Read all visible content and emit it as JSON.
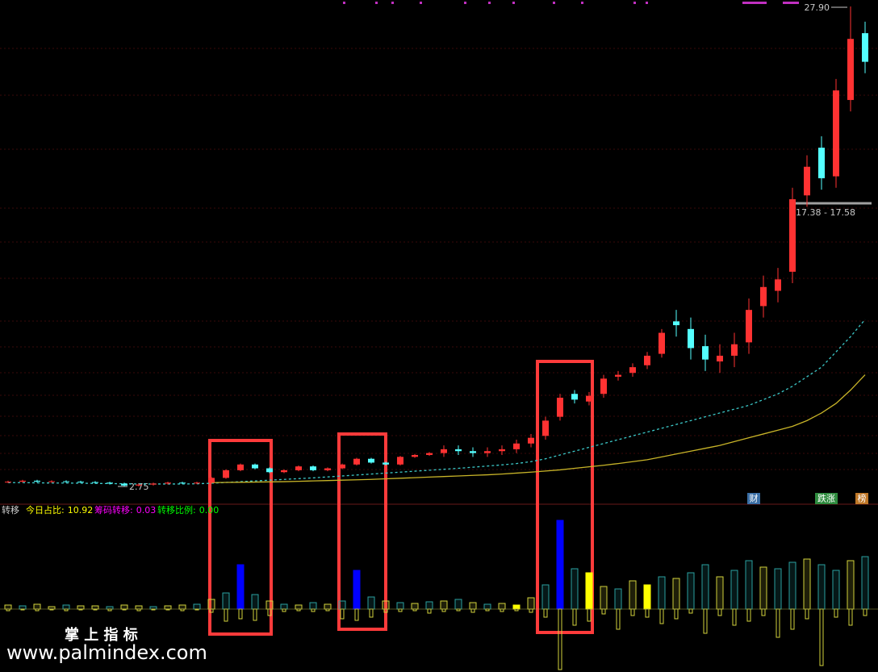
{
  "chart_data": [
    {
      "type": "candlestick",
      "open": [
        2.98,
        3.0,
        3.05,
        3.0,
        3.02,
        3.0,
        2.98,
        2.95,
        2.9,
        2.8,
        2.85,
        2.9,
        2.95,
        2.92,
        2.95,
        3.2,
        3.6,
        3.9,
        3.7,
        3.5,
        3.6,
        3.8,
        3.6,
        3.7,
        3.9,
        4.2,
        4.0,
        3.9,
        4.3,
        4.4,
        4.5,
        4.7,
        4.6,
        4.5,
        4.6,
        4.7,
        5.0,
        5.4,
        6.4,
        7.6,
        7.2,
        7.6,
        8.5,
        8.7,
        9.1,
        9.7,
        11.4,
        11.0,
        10.1,
        9.3,
        9.6,
        10.3,
        12.2,
        13.0,
        14.0,
        18.0,
        20.5,
        19.0,
        23.0,
        26.5
      ],
      "high": [
        3.05,
        3.1,
        3.1,
        3.07,
        3.07,
        3.05,
        3.03,
        3.0,
        2.95,
        2.9,
        2.95,
        3.0,
        3.0,
        3.0,
        3.25,
        3.65,
        3.95,
        3.95,
        3.75,
        3.65,
        3.85,
        3.85,
        3.75,
        3.95,
        4.25,
        4.25,
        4.05,
        4.35,
        4.45,
        4.55,
        4.9,
        4.9,
        4.8,
        4.8,
        4.9,
        5.2,
        5.5,
        6.4,
        7.6,
        7.8,
        7.7,
        8.6,
        8.8,
        9.2,
        9.8,
        11.0,
        12.0,
        11.6,
        10.7,
        10.2,
        10.8,
        12.6,
        13.8,
        14.2,
        18.4,
        20.1,
        21.1,
        24.1,
        27.9,
        27.1
      ],
      "low": [
        2.93,
        2.95,
        2.95,
        2.95,
        2.95,
        2.93,
        2.9,
        2.85,
        2.75,
        2.75,
        2.8,
        2.85,
        2.87,
        2.87,
        2.9,
        3.15,
        3.55,
        3.65,
        3.45,
        3.45,
        3.55,
        3.55,
        3.55,
        3.65,
        3.85,
        3.95,
        3.85,
        3.85,
        4.25,
        4.35,
        4.3,
        4.4,
        4.3,
        4.3,
        4.4,
        4.5,
        4.8,
        5.2,
        6.2,
        7.1,
        7.0,
        7.4,
        8.3,
        8.5,
        8.9,
        9.5,
        10.6,
        9.4,
        8.8,
        8.7,
        9.0,
        9.7,
        11.6,
        12.4,
        13.4,
        17.4,
        18.3,
        18.4,
        22.4,
        24.4
      ],
      "close": [
        3.0,
        3.05,
        3.0,
        3.02,
        3.0,
        2.98,
        2.95,
        2.9,
        2.8,
        2.85,
        2.9,
        2.95,
        2.92,
        2.95,
        3.2,
        3.6,
        3.9,
        3.7,
        3.5,
        3.6,
        3.8,
        3.6,
        3.7,
        3.9,
        4.2,
        4.0,
        3.9,
        4.3,
        4.4,
        4.5,
        4.7,
        4.6,
        4.5,
        4.6,
        4.7,
        5.0,
        5.3,
        6.2,
        7.4,
        7.3,
        7.5,
        8.4,
        8.6,
        9.0,
        9.6,
        10.8,
        11.2,
        10.0,
        9.4,
        9.6,
        10.2,
        12.0,
        13.2,
        13.6,
        17.8,
        19.5,
        18.9,
        23.5,
        26.2,
        25.0
      ],
      "up_color": "#ff3232",
      "down_color": "#54ffff",
      "ma": [
        {
          "color": "#3cc8c8",
          "dashed": true,
          "values": [
            2.95,
            2.95,
            2.94,
            2.93,
            2.93,
            2.92,
            2.91,
            2.9,
            2.89,
            2.88,
            2.88,
            2.88,
            2.88,
            2.89,
            2.92,
            2.96,
            3.0,
            3.04,
            3.08,
            3.12,
            3.16,
            3.2,
            3.25,
            3.3,
            3.35,
            3.4,
            3.45,
            3.5,
            3.55,
            3.6,
            3.65,
            3.7,
            3.76,
            3.82,
            3.88,
            3.95,
            4.05,
            4.2,
            4.4,
            4.6,
            4.8,
            5.0,
            5.2,
            5.4,
            5.6,
            5.8,
            6.0,
            6.2,
            6.4,
            6.6,
            6.8,
            7.0,
            7.3,
            7.6,
            8.0,
            8.5,
            9.0,
            9.8,
            10.6,
            11.5
          ]
        },
        {
          "color": "#c8b428",
          "dashed": false,
          "values": [
            null,
            null,
            null,
            null,
            null,
            null,
            null,
            null,
            null,
            null,
            null,
            null,
            null,
            null,
            2.95,
            2.96,
            2.97,
            2.98,
            2.99,
            3.0,
            3.02,
            3.04,
            3.06,
            3.08,
            3.1,
            3.12,
            3.15,
            3.18,
            3.21,
            3.24,
            3.27,
            3.3,
            3.33,
            3.36,
            3.4,
            3.45,
            3.5,
            3.56,
            3.62,
            3.7,
            3.78,
            3.86,
            3.95,
            4.05,
            4.15,
            4.3,
            4.45,
            4.6,
            4.75,
            4.9,
            5.1,
            5.3,
            5.5,
            5.7,
            5.9,
            6.2,
            6.6,
            7.1,
            7.8,
            8.6
          ]
        }
      ],
      "high_label": {
        "value": 27.9,
        "label": "27.90"
      },
      "low_label": 2.75,
      "range_label": "17.38 - 17.58",
      "badges": [
        {
          "text": "财",
          "color": "#3a6ea5"
        },
        {
          "text": "跌涨",
          "color": "#2e8b3e"
        },
        {
          "text": "榜",
          "color": "#c07828"
        }
      ]
    },
    {
      "type": "bar",
      "title": "转移",
      "legend": [
        {
          "name": "今日占比:",
          "value": 10.92,
          "color": "#ffff00"
        },
        {
          "name": "筹码转移:",
          "value": 0.03,
          "color": "#ff00ff"
        },
        {
          "name": "转移比例:",
          "value": 0,
          "value_label": "0.00",
          "color": "#00ff00"
        }
      ],
      "up": [
        5,
        4,
        6,
        3,
        5,
        4,
        4,
        3,
        5,
        4,
        3,
        4,
        5,
        6,
        12,
        20,
        55,
        18,
        10,
        6,
        5,
        8,
        6,
        10,
        48,
        15,
        10,
        8,
        7,
        9,
        10,
        12,
        8,
        6,
        7,
        5,
        14,
        30,
        110,
        50,
        45,
        28,
        25,
        35,
        30,
        40,
        38,
        45,
        55,
        40,
        48,
        60,
        52,
        50,
        58,
        62,
        55,
        48,
        60,
        65
      ],
      "colors": [
        "#d2d23c",
        "#2aa0a0",
        "#d2d23c",
        "#d2d23c",
        "#2aa0a0",
        "#d2d23c",
        "#d2d23c",
        "#2aa0a0",
        "#d2d23c",
        "#d2d23c",
        "#2aa0a0",
        "#d2d23c",
        "#d2d23c",
        "#2aa0a0",
        "#d2d23c",
        "#2aa0a0",
        "#0000ff",
        "#2aa0a0",
        "#d2d23c",
        "#2aa0a0",
        "#d2d23c",
        "#2aa0a0",
        "#d2d23c",
        "#2aa0a0",
        "#0000ff",
        "#2aa0a0",
        "#d2d23c",
        "#2aa0a0",
        "#d2d23c",
        "#2aa0a0",
        "#d2d23c",
        "#2aa0a0",
        "#d2d23c",
        "#2aa0a0",
        "#d2d23c",
        "#ffff00",
        "#d2d23c",
        "#2aa0a0",
        "#0000ff",
        "#2aa0a0",
        "#ffff00",
        "#d2d23c",
        "#2aa0a0",
        "#d2d23c",
        "#ffff00",
        "#2aa0a0",
        "#d2d23c",
        "#2aa0a0",
        "#2aa0a0",
        "#d2d23c",
        "#2aa0a0",
        "#2aa0a0",
        "#d2d23c",
        "#2aa0a0",
        "#2aa0a0",
        "#d2d23c",
        "#2aa0a0",
        "#2aa0a0",
        "#d2d23c",
        "#2aa0a0"
      ],
      "down": [
        -2,
        -1,
        -2,
        -1,
        -2,
        -1,
        -1,
        -2,
        -1,
        -2,
        -1,
        -1,
        -2,
        -1,
        -4,
        -15,
        -12,
        -14,
        -8,
        -3,
        -2,
        -3,
        -2,
        -12,
        -14,
        -10,
        -4,
        -3,
        -2,
        -5,
        -3,
        -2,
        -4,
        -2,
        -3,
        -2,
        -4,
        -10,
        -75,
        -20,
        -15,
        -6,
        -25,
        -8,
        -10,
        -18,
        -12,
        -5,
        -30,
        -8,
        -20,
        -15,
        -8,
        -35,
        -25,
        -12,
        -70,
        -10,
        -20,
        -8
      ],
      "down_color": "#d2d23c"
    }
  ],
  "watermark": {
    "title": "掌 上 指 标",
    "url": "www.palmindex.com"
  }
}
